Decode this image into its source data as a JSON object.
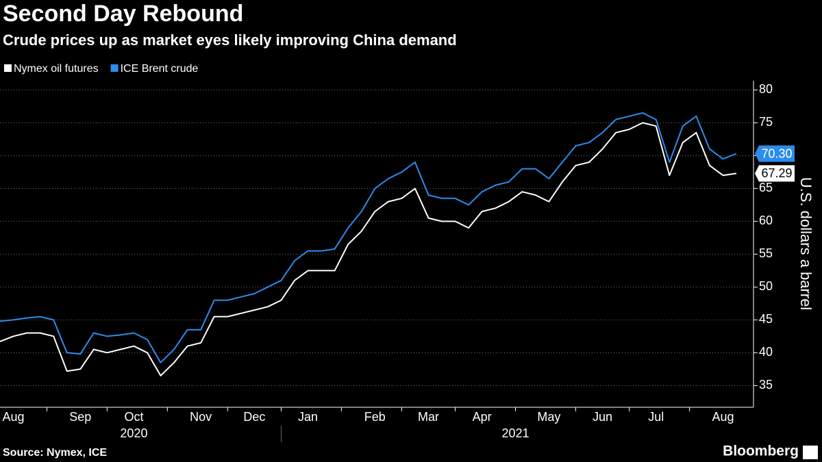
{
  "chart_data": {
    "type": "line",
    "title": "Second Day Rebound",
    "subtitle": "Crude prices up as market eyes likely improving China demand",
    "y_axis_label": "U.S. dollars a barrel",
    "source": "Source: Nymex, ICE",
    "brand": "Bloomberg",
    "categories": [
      null,
      "Aug",
      null,
      null,
      null,
      null,
      "Sep",
      null,
      null,
      null,
      "Oct",
      null,
      null,
      null,
      null,
      "Nov",
      null,
      null,
      null,
      "Dec",
      null,
      null,
      null,
      "Jan",
      null,
      null,
      null,
      null,
      "Feb",
      null,
      null,
      null,
      "Mar",
      null,
      null,
      null,
      "Apr",
      null,
      null,
      null,
      null,
      "May",
      null,
      null,
      null,
      "Jun",
      null,
      null,
      null,
      "Jul",
      null,
      null,
      null,
      null,
      "Aug",
      null
    ],
    "years": [
      {
        "label": "2020",
        "from": 1,
        "to": 19
      },
      {
        "label": "2021",
        "from": 23,
        "to": 54
      }
    ],
    "series": [
      {
        "name": "Nymex oil futures",
        "color": "#ffffff",
        "values": [
          41.7,
          42.5,
          43,
          43,
          42.5,
          37.2,
          37.5,
          40.5,
          40,
          40.5,
          41,
          40,
          36.5,
          38.5,
          41,
          41.5,
          45.5,
          45.5,
          46,
          46.5,
          47,
          48,
          51,
          52.5,
          52.5,
          52.5,
          56.5,
          58.5,
          61.5,
          63,
          63.5,
          65,
          60.5,
          60,
          60,
          59,
          61.5,
          62,
          63,
          64.5,
          64,
          63,
          66,
          68.5,
          69,
          71,
          73.5,
          74,
          75,
          74.5,
          67,
          72,
          73.5,
          68.5,
          67,
          67.29
        ],
        "value_labels": [
          null,
          null,
          null,
          null,
          null,
          null,
          null,
          null,
          null,
          null,
          null,
          null,
          null,
          null,
          null,
          null,
          null,
          null,
          null,
          null,
          null,
          null,
          null,
          null,
          null,
          null,
          null,
          null,
          null,
          null,
          null,
          null,
          null,
          null,
          null,
          null,
          null,
          null,
          null,
          null,
          null,
          null,
          null,
          null,
          null,
          null,
          null,
          null,
          null,
          null,
          null,
          null,
          null,
          null,
          null,
          "67.29"
        ]
      },
      {
        "name": "ICE Brent crude",
        "color": "#2d8ceb",
        "values": [
          44.8,
          45,
          45.3,
          45.5,
          45,
          40,
          39.8,
          43,
          42.5,
          42.7,
          43,
          42,
          38.5,
          40.5,
          43.5,
          43.5,
          48,
          48,
          48.5,
          49,
          50,
          51,
          54,
          55.5,
          55.5,
          55.8,
          59,
          61.5,
          65,
          66.5,
          67.5,
          69,
          64,
          63.5,
          63.5,
          62.5,
          64.5,
          65.5,
          66,
          68,
          68,
          66.5,
          69,
          71.5,
          72,
          73.5,
          75.5,
          76,
          76.5,
          75.5,
          69,
          74.5,
          76,
          71,
          69.5,
          70.3
        ],
        "value_labels": [
          null,
          null,
          null,
          null,
          null,
          null,
          null,
          null,
          null,
          null,
          null,
          null,
          null,
          null,
          null,
          null,
          null,
          null,
          null,
          null,
          null,
          null,
          null,
          null,
          null,
          null,
          null,
          null,
          null,
          null,
          null,
          null,
          null,
          null,
          null,
          null,
          null,
          null,
          null,
          null,
          null,
          null,
          null,
          null,
          null,
          null,
          null,
          null,
          null,
          null,
          null,
          null,
          null,
          null,
          null,
          "70.30"
        ]
      }
    ],
    "ylim": [
      31.7,
      81.4
    ],
    "yticks": [
      35,
      40,
      45,
      50,
      55,
      60,
      65,
      70,
      75,
      80
    ],
    "grid": true
  }
}
